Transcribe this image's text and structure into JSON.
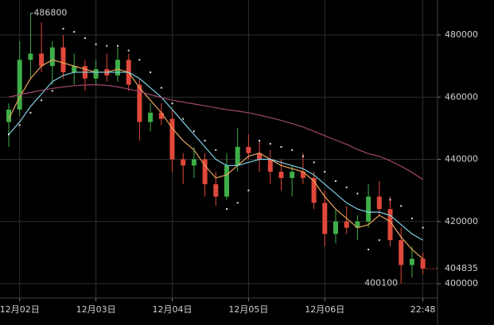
{
  "chart_data": {
    "type": "candlestick",
    "categories": [
      null,
      "12月02日",
      null,
      null,
      null,
      null,
      null,
      null,
      "12月03日",
      null,
      null,
      null,
      null,
      null,
      null,
      "12月04日",
      null,
      null,
      null,
      null,
      null,
      null,
      "12月05日",
      null,
      null,
      null,
      null,
      null,
      null,
      "12月06日",
      null,
      null,
      null,
      null,
      null,
      null,
      null,
      null,
      "22:48"
    ],
    "open": [
      452000,
      456000,
      472000,
      474000,
      470000,
      476000,
      468000,
      470000,
      466000,
      469000,
      467000,
      472000,
      464000,
      452000,
      455000,
      453000,
      440000,
      438000,
      440000,
      432000,
      428000,
      438000,
      444000,
      442000,
      440000,
      436000,
      434000,
      436000,
      434000,
      426000,
      416000,
      420000,
      418000,
      420000,
      428000,
      424000,
      414000,
      406000,
      408000
    ],
    "high": [
      458000,
      478000,
      486800,
      484000,
      478000,
      480000,
      474000,
      472000,
      472000,
      474000,
      476000,
      474000,
      466000,
      458000,
      458000,
      456000,
      442000,
      444000,
      442000,
      436000,
      442000,
      450000,
      448000,
      446000,
      443000,
      440000,
      438000,
      442000,
      436000,
      430000,
      424000,
      425000,
      422000,
      432000,
      433000,
      428000,
      418000,
      412000,
      410000
    ],
    "low": [
      444000,
      454000,
      466000,
      468000,
      464000,
      466000,
      464000,
      462000,
      464000,
      465000,
      465000,
      462000,
      446000,
      449000,
      451000,
      436000,
      432000,
      434000,
      428000,
      425000,
      427000,
      436000,
      440000,
      436000,
      432000,
      430000,
      428000,
      432000,
      424000,
      412000,
      413000,
      416000,
      414000,
      418000,
      422000,
      412000,
      400100,
      402000,
      403000
    ],
    "close": [
      456000,
      472000,
      474000,
      470000,
      476000,
      468000,
      470000,
      466000,
      469000,
      467000,
      472000,
      464000,
      452000,
      455000,
      453000,
      440000,
      438000,
      440000,
      432000,
      428000,
      438000,
      444000,
      442000,
      440000,
      436000,
      434000,
      436000,
      434000,
      426000,
      416000,
      420000,
      418000,
      420000,
      428000,
      424000,
      414000,
      406000,
      408000,
      404835
    ],
    "up_color": "#3fae49",
    "down_color": "#e0483b",
    "indicators": [
      {
        "color": "#e8a45c",
        "values": [
          453000,
          460000,
          466000,
          470000,
          472000,
          471000,
          470000,
          469000,
          468000,
          468000,
          469000,
          468000,
          463000,
          459000,
          455000,
          450000,
          446000,
          443000,
          438000,
          434000,
          435000,
          438000,
          441000,
          442000,
          440000,
          438000,
          437000,
          436000,
          433000,
          428000,
          424000,
          421000,
          418000,
          419000,
          422000,
          420000,
          415000,
          411000,
          408000
        ]
      },
      {
        "color": "#7fd3e6",
        "values": [
          448000,
          452000,
          457000,
          461000,
          465000,
          467000,
          468000,
          468000,
          468000,
          468000,
          468000,
          468000,
          466000,
          463000,
          460000,
          456000,
          452000,
          448000,
          444000,
          440000,
          438000,
          438000,
          439000,
          440000,
          440000,
          439000,
          438000,
          437000,
          435000,
          432000,
          429000,
          426000,
          424000,
          423000,
          423000,
          422000,
          419000,
          416000,
          414000
        ]
      },
      {
        "color": "#a0466e",
        "values": [
          460000,
          460800,
          461500,
          462200,
          462800,
          463300,
          463700,
          463900,
          464000,
          463800,
          463300,
          462600,
          461800,
          460800,
          459900,
          459000,
          458400,
          457800,
          457200,
          456600,
          456000,
          455500,
          455000,
          454200,
          453400,
          452500,
          451500,
          450400,
          449000,
          447600,
          446200,
          444800,
          443200,
          441800,
          441000,
          439500,
          437800,
          435800,
          433500
        ]
      }
    ],
    "sar": {
      "color": "#e6e6e6",
      "values": [
        448000,
        451000,
        455000,
        459000,
        462000,
        482000,
        481000,
        479000,
        477000,
        476500,
        476500,
        475000,
        472000,
        468000,
        463000,
        458000,
        453000,
        449000,
        446000,
        443000,
        424000,
        426000,
        430000,
        446000,
        445000,
        444000,
        443000,
        441000,
        439000,
        436000,
        433000,
        431000,
        429000,
        411000,
        414000,
        427000,
        425000,
        421000,
        418000
      ]
    },
    "ylim": [
      395400,
      491250
    ],
    "yticks": [
      400000,
      420000,
      440000,
      460000,
      480000
    ],
    "grid": true
  }
}
